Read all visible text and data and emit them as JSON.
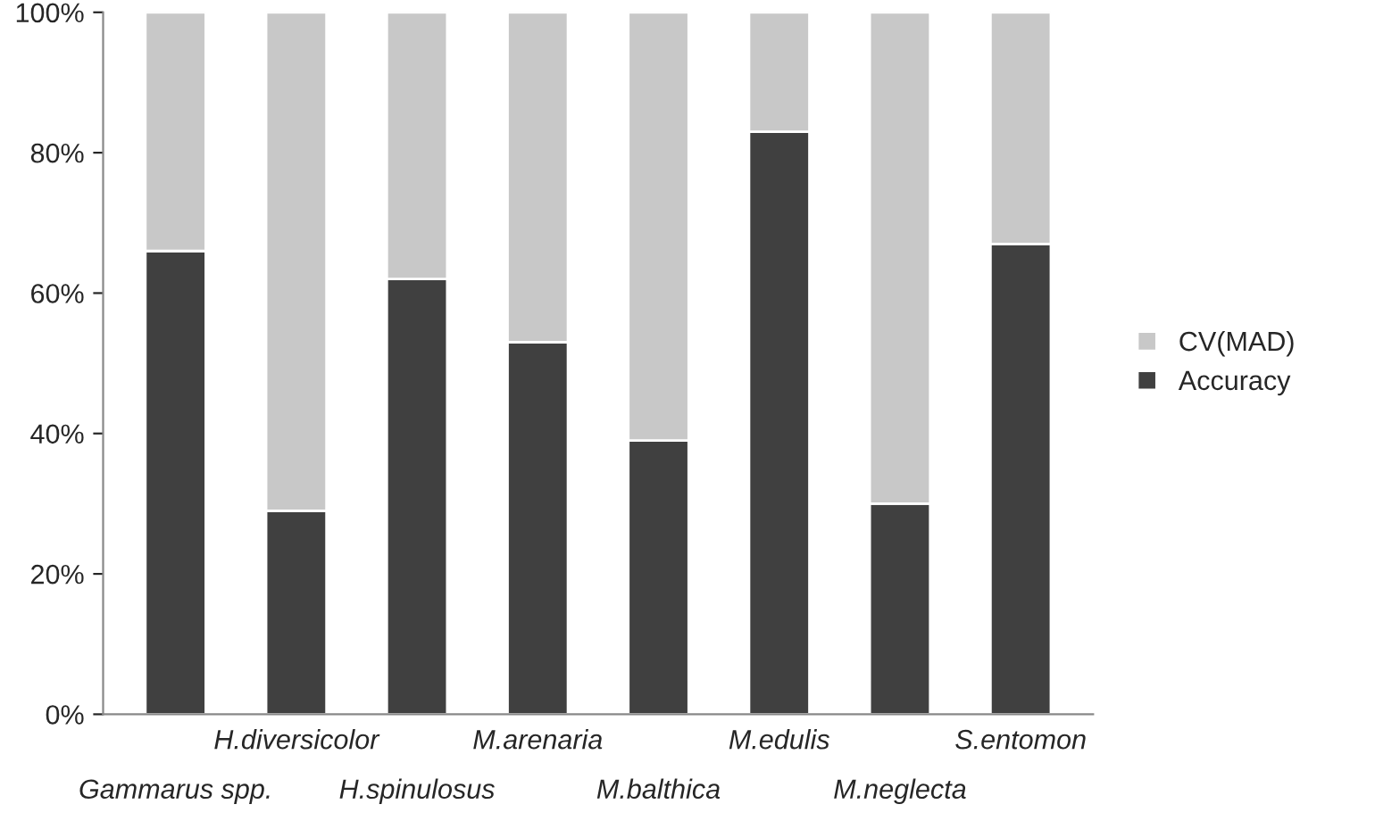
{
  "chart_data": {
    "type": "bar",
    "stacked": true,
    "categories": [
      "Gammarus spp.",
      "H.diversicolor",
      "H.spinulosus",
      "M.arenaria",
      "M.balthica",
      "M.edulis",
      "M.neglecta",
      "S.entomon"
    ],
    "series": [
      {
        "name": "Accuracy",
        "color": "#404040",
        "values": [
          66,
          29,
          62,
          53,
          39,
          83,
          30,
          67
        ]
      },
      {
        "name": "CV(MAD)",
        "color": "#c8c8c8",
        "values": [
          34,
          71,
          38,
          47,
          61,
          17,
          70,
          33
        ]
      }
    ],
    "ylim": [
      0,
      100
    ],
    "yticks": [
      {
        "value": 0,
        "label": "0%"
      },
      {
        "value": 20,
        "label": "20%"
      },
      {
        "value": 40,
        "label": "40%"
      },
      {
        "value": 60,
        "label": "60%"
      },
      {
        "value": 80,
        "label": "80%"
      },
      {
        "value": 100,
        "label": "100%"
      }
    ],
    "grid": false,
    "legend": "right"
  }
}
